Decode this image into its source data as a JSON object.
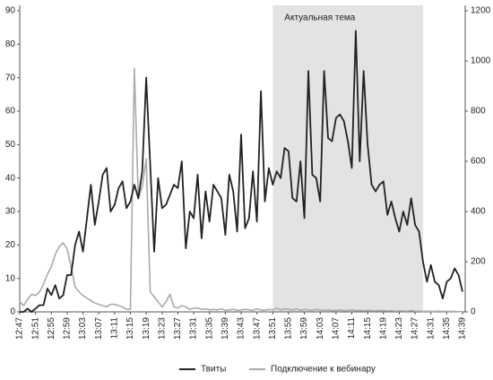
{
  "chart_data": {
    "type": "line",
    "categories": [
      "12:47",
      null,
      null,
      null,
      "12:51",
      null,
      null,
      null,
      "12:55",
      null,
      null,
      null,
      "12:59",
      null,
      null,
      null,
      "13:03",
      null,
      null,
      null,
      "13:07",
      null,
      null,
      null,
      "13:11",
      null,
      null,
      null,
      "13:15",
      null,
      null,
      null,
      "13:19",
      null,
      null,
      null,
      "13:23",
      null,
      null,
      null,
      "13:27",
      null,
      null,
      null,
      "13:31",
      null,
      null,
      null,
      "13:35",
      null,
      null,
      null,
      "13:39",
      null,
      null,
      null,
      "13:43",
      null,
      null,
      null,
      "13:47",
      null,
      null,
      null,
      "13:51",
      null,
      null,
      null,
      "13:55",
      null,
      null,
      null,
      "13:59",
      null,
      null,
      null,
      "14:03",
      null,
      null,
      null,
      "14:07",
      null,
      null,
      null,
      "14:11",
      null,
      null,
      null,
      "14:15",
      null,
      null,
      null,
      "14:19",
      null,
      null,
      null,
      "14:23",
      null,
      null,
      null,
      "14:27",
      null,
      null,
      null,
      "14:31",
      null,
      null,
      null,
      "14:35",
      null,
      null,
      null,
      "14:39"
    ],
    "series": [
      {
        "name": "Твиты",
        "color": "#222222",
        "values": [
          0,
          0,
          1,
          0,
          1,
          2,
          2,
          7,
          5,
          8,
          4,
          5,
          11,
          11,
          20,
          24,
          18,
          28,
          38,
          26,
          33,
          41,
          43,
          30,
          32,
          37,
          39,
          31,
          33,
          38,
          34,
          42,
          70,
          44,
          18,
          40,
          31,
          32,
          35,
          38,
          37,
          45,
          19,
          30,
          28,
          41,
          22,
          36,
          27,
          38,
          36,
          34,
          23,
          41,
          36,
          24,
          53,
          25,
          28,
          42,
          27,
          66,
          33,
          43,
          38,
          42,
          40,
          49,
          48,
          34,
          33,
          45,
          28,
          72,
          41,
          40,
          33,
          72,
          52,
          51,
          58,
          59,
          57,
          51,
          43,
          84,
          45,
          72,
          50,
          38,
          36,
          38,
          39,
          29,
          33,
          28,
          24,
          30,
          26,
          34,
          26,
          24,
          15,
          9,
          14,
          9,
          8,
          4,
          9,
          10,
          13,
          11,
          6
        ]
      },
      {
        "name": "Подключение к вебинару",
        "color": "#aaaaaa",
        "axis": "y2",
        "values": [
          40,
          25,
          50,
          70,
          65,
          80,
          110,
          150,
          180,
          230,
          260,
          275,
          250,
          180,
          100,
          80,
          65,
          55,
          45,
          35,
          30,
          25,
          20,
          30,
          30,
          25,
          20,
          10,
          10,
          970,
          450,
          500,
          610,
          80,
          60,
          40,
          20,
          40,
          70,
          20,
          15,
          25,
          20,
          10,
          15,
          15,
          10,
          12,
          8,
          10,
          8,
          12,
          6,
          8,
          10,
          6,
          8,
          10,
          8,
          6,
          12,
          8,
          6,
          10,
          8,
          15,
          8,
          12,
          10,
          8,
          12,
          6,
          10,
          8,
          6,
          10,
          8,
          6,
          8,
          5,
          6,
          8,
          5,
          6,
          8,
          5,
          6,
          4,
          6,
          5,
          4,
          6,
          5,
          4,
          5,
          3,
          4,
          4,
          3,
          5,
          3,
          3,
          2,
          3,
          2,
          2,
          3,
          2,
          2,
          2,
          2,
          1,
          1
        ]
      }
    ],
    "ylim": [
      0,
      90
    ],
    "yticks": [
      0,
      10,
      20,
      30,
      40,
      50,
      60,
      70,
      80,
      90
    ],
    "y2lim": [
      0,
      1200
    ],
    "y2ticks": [
      0,
      200,
      400,
      600,
      800,
      1000,
      1200
    ],
    "highlight": {
      "label": "Актуальная тема",
      "start": "13:51",
      "end": "14:29",
      "color": "#e3e3e3"
    },
    "legend": "bottom"
  }
}
